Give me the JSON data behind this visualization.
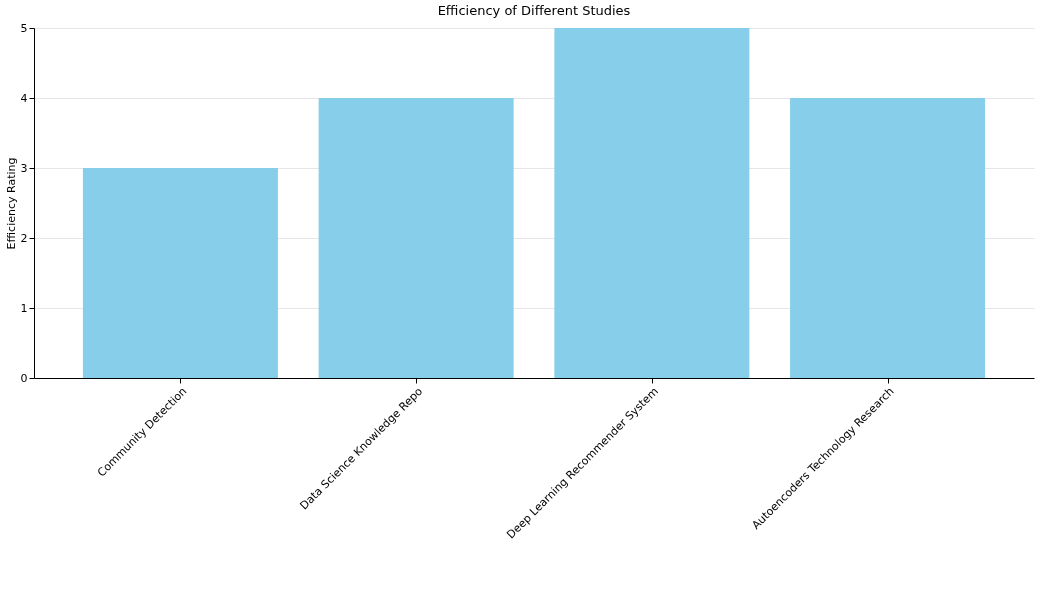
{
  "chart_data": {
    "type": "bar",
    "title": "Efficiency of Different Studies",
    "ylabel": "Efficiency Rating",
    "categories": [
      "Community Detection",
      "Data Science Knowledge Repo",
      "Deep Learning Recommender System",
      "Autoencoders Technology Research"
    ],
    "values": [
      3,
      4,
      5,
      4
    ],
    "color": "#87ceeb",
    "ylim": [
      0,
      5
    ],
    "yticks": [
      0,
      1,
      2,
      3,
      4,
      5
    ],
    "grid": "y"
  }
}
